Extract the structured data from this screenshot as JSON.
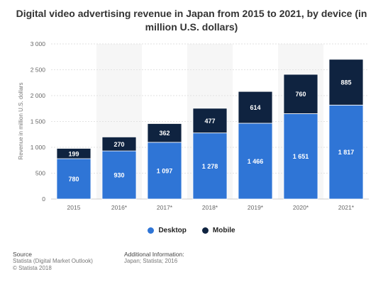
{
  "chart_data": {
    "type": "bar",
    "stacked": true,
    "title": "Digital video advertising revenue in Japan from 2015 to 2021, by device (in million U.S. dollars)",
    "ylabel": "Revenue in million U.S. dollars",
    "xlabel": "",
    "categories": [
      "2015",
      "2016*",
      "2017*",
      "2018*",
      "2019*",
      "2020*",
      "2021*"
    ],
    "ylim": [
      0,
      3000
    ],
    "yticks": [
      0,
      500,
      1000,
      1500,
      2000,
      2500,
      3000
    ],
    "ytick_labels": [
      "0",
      "500",
      "1 000",
      "1 500",
      "2 000",
      "2 500",
      "3 000"
    ],
    "series": [
      {
        "name": "Desktop",
        "color": "#2f75d6",
        "values": [
          780,
          930,
          1097,
          1278,
          1466,
          1651,
          1817
        ],
        "labels": [
          "780",
          "930",
          "1 097",
          "1 278",
          "1 466",
          "1 651",
          "1 817"
        ]
      },
      {
        "name": "Mobile",
        "color": "#0f2340",
        "values": [
          199,
          270,
          362,
          477,
          614,
          760,
          885
        ],
        "labels": [
          "199",
          "270",
          "362",
          "477",
          "614",
          "760",
          "885"
        ]
      }
    ],
    "legend": "bottom-center",
    "grid": true
  },
  "footer": {
    "source_heading": "Source",
    "source_line1": "Statista (Digital Market Outlook)",
    "source_line2": "© Statista 2018",
    "info_heading": "Additional Information:",
    "info_line1": "Japan; Statista; 2016"
  }
}
